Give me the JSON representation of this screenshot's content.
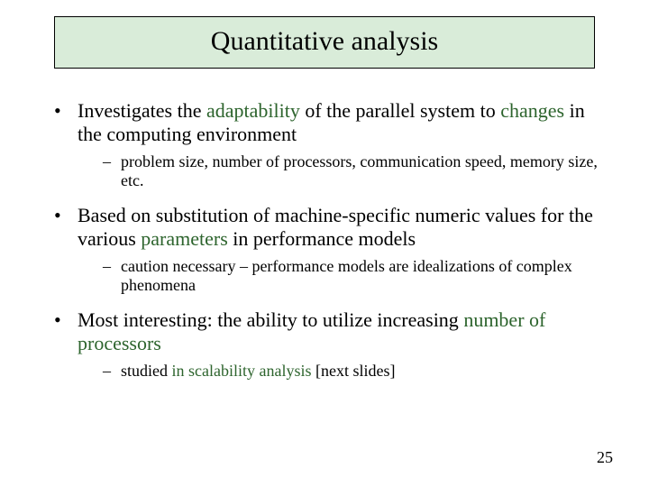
{
  "colors": {
    "title_bg": "#d9ecd9",
    "title_border": "#000000",
    "accent_text": "#2d642d",
    "body_text": "#000000",
    "background": "#ffffff"
  },
  "typography": {
    "title_fontsize_pt": 30,
    "bullet1_fontsize_pt": 22,
    "bullet2_fontsize_pt": 18,
    "font_family": "Times New Roman"
  },
  "title": "Quantitative analysis",
  "bullets": [
    {
      "runs": [
        {
          "t": "Investigates the "
        },
        {
          "t": "adaptability",
          "accent": true
        },
        {
          "t": " of the parallel system to "
        },
        {
          "t": "changes",
          "accent": true
        },
        {
          "t": " in the computing environment"
        }
      ],
      "sub": [
        {
          "runs": [
            {
              "t": "problem size, number of processors, communication speed, memory size, etc."
            }
          ]
        }
      ]
    },
    {
      "runs": [
        {
          "t": "Based on substitution of machine-specific numeric values for the various "
        },
        {
          "t": "parameters",
          "accent": true
        },
        {
          "t": " in performance models"
        }
      ],
      "sub": [
        {
          "runs": [
            {
              "t": "caution necessary – performance models are idealizations of complex phenomena"
            }
          ]
        }
      ]
    },
    {
      "runs": [
        {
          "t": "Most interesting: the ability to utilize increasing "
        },
        {
          "t": "number of processors",
          "accent": true
        }
      ],
      "sub": [
        {
          "runs": [
            {
              "t": "studied "
            },
            {
              "t": "in scalability analysis ",
              "accent": true
            },
            {
              "t": "[next slides]"
            }
          ]
        }
      ]
    }
  ],
  "page_number": "25"
}
